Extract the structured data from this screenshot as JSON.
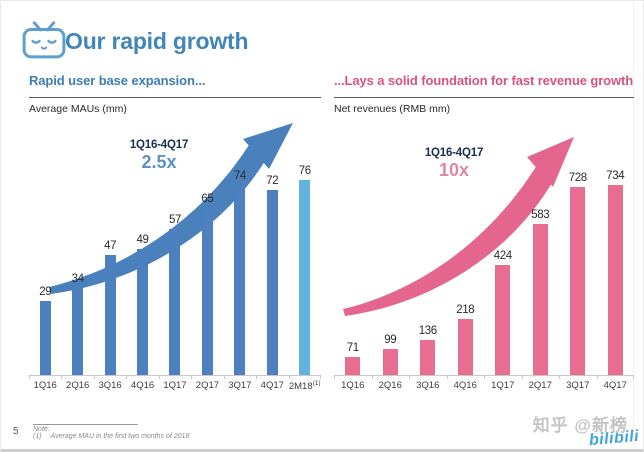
{
  "slide": {
    "title": "Our rapid growth",
    "page_number": "5",
    "footnote": {
      "label": "Note:",
      "item_marker": "(1)",
      "item_text": "Average MAU in the first two months of 2018"
    },
    "watermark": {
      "text": "知乎 @新榜",
      "logo_text": "bilibili"
    },
    "colors": {
      "title_blue": "#4286b8",
      "icon_blue": "#5c9fd0"
    }
  },
  "chart_data": [
    {
      "type": "bar",
      "section_title": "Rapid user base expansion...",
      "series_label": "Average MAUs (mm)",
      "categories": [
        "1Q16",
        "2Q16",
        "3Q16",
        "4Q16",
        "1Q17",
        "2Q17",
        "3Q17",
        "4Q17",
        "2M18"
      ],
      "category_superscripts": [
        "",
        "",
        "",
        "",
        "",
        "",
        "",
        "",
        "(1)"
      ],
      "values": [
        29,
        34,
        47,
        49,
        57,
        65,
        74,
        72,
        76
      ],
      "ylim": [
        0,
        80
      ],
      "grid": false,
      "legend": "none",
      "annotation": {
        "range": "1Q16-4Q17",
        "multiple": "2.5x"
      },
      "colors": {
        "bar": "#4c80bf",
        "last_bar": "#62b2df",
        "section_title": "#3e7cb1",
        "range_label": "#1a2f4e",
        "multiple": "#5e90c4",
        "arrow": "#4a81bd"
      }
    },
    {
      "type": "bar",
      "section_title": "...Lays a solid foundation for fast revenue growth",
      "series_label": "Net revenues (RMB mm)",
      "categories": [
        "1Q16",
        "2Q16",
        "3Q16",
        "4Q16",
        "1Q17",
        "2Q17",
        "3Q17",
        "4Q17"
      ],
      "category_superscripts": [
        "",
        "",
        "",
        "",
        "",
        "",
        "",
        ""
      ],
      "values": [
        71,
        99,
        136,
        218,
        424,
        583,
        728,
        734
      ],
      "ylim": [
        0,
        800
      ],
      "grid": false,
      "legend": "none",
      "annotation": {
        "range": "1Q16-4Q17",
        "multiple": "10x"
      },
      "colors": {
        "bar": "#e76d91",
        "section_title": "#d6537f",
        "range_label": "#1a2f4e",
        "multiple": "#dd86a4",
        "arrow": "#e4668f"
      }
    }
  ]
}
